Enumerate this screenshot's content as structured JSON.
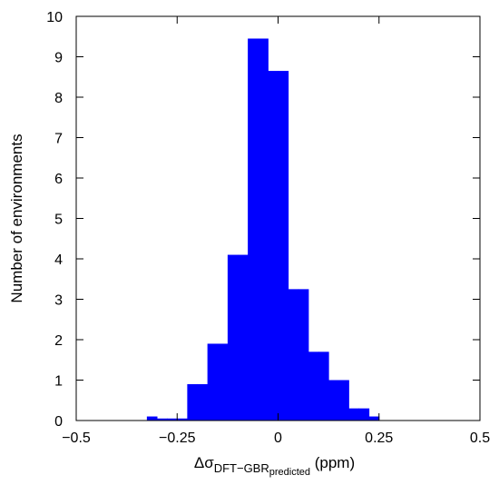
{
  "chart_data": {
    "type": "bar",
    "bar_color": "#0000ff",
    "xlim": [
      -0.5,
      0.5
    ],
    "ylim": [
      0,
      10
    ],
    "x_ticks": [
      -0.5,
      -0.25,
      0,
      0.25,
      0.5
    ],
    "x_tick_labels": [
      "−0.5",
      "−0.25",
      "0",
      "0.25",
      "0.5"
    ],
    "y_ticks": [
      0,
      1,
      2,
      3,
      4,
      5,
      6,
      7,
      8,
      9,
      10
    ],
    "y_tick_labels": [
      "0",
      "1",
      "2",
      "3",
      "4",
      "5",
      "6",
      "7",
      "8",
      "9",
      "10"
    ],
    "ylabel": "Number of environments",
    "xlabel": {
      "prefix": "Δσ",
      "subscript_main": "DFT−GBR",
      "subscript_sub": "predicted",
      "suffix": " (ppm)"
    },
    "bins": [
      {
        "x0": -0.325,
        "x1": -0.3,
        "value": 0.1
      },
      {
        "x0": -0.3,
        "x1": -0.275,
        "value": 0.05
      },
      {
        "x0": -0.275,
        "x1": -0.25,
        "value": 0.05
      },
      {
        "x0": -0.25,
        "x1": -0.225,
        "value": 0.05
      },
      {
        "x0": -0.225,
        "x1": -0.2,
        "value": 0.9
      },
      {
        "x0": -0.2,
        "x1": -0.175,
        "value": 0.9
      },
      {
        "x0": -0.175,
        "x1": -0.15,
        "value": 1.9
      },
      {
        "x0": -0.15,
        "x1": -0.125,
        "value": 1.9
      },
      {
        "x0": -0.125,
        "x1": -0.1,
        "value": 4.1
      },
      {
        "x0": -0.1,
        "x1": -0.075,
        "value": 4.1
      },
      {
        "x0": -0.075,
        "x1": -0.05,
        "value": 9.45
      },
      {
        "x0": -0.05,
        "x1": -0.025,
        "value": 9.45
      },
      {
        "x0": -0.025,
        "x1": 0.0,
        "value": 8.65
      },
      {
        "x0": 0.0,
        "x1": 0.025,
        "value": 8.65
      },
      {
        "x0": 0.025,
        "x1": 0.05,
        "value": 3.25
      },
      {
        "x0": 0.05,
        "x1": 0.075,
        "value": 3.25
      },
      {
        "x0": 0.075,
        "x1": 0.1,
        "value": 1.7
      },
      {
        "x0": 0.1,
        "x1": 0.125,
        "value": 1.7
      },
      {
        "x0": 0.125,
        "x1": 0.15,
        "value": 1.0
      },
      {
        "x0": 0.15,
        "x1": 0.175,
        "value": 1.0
      },
      {
        "x0": 0.175,
        "x1": 0.2,
        "value": 0.3
      },
      {
        "x0": 0.2,
        "x1": 0.225,
        "value": 0.3
      },
      {
        "x0": 0.225,
        "x1": 0.25,
        "value": 0.1
      }
    ]
  }
}
